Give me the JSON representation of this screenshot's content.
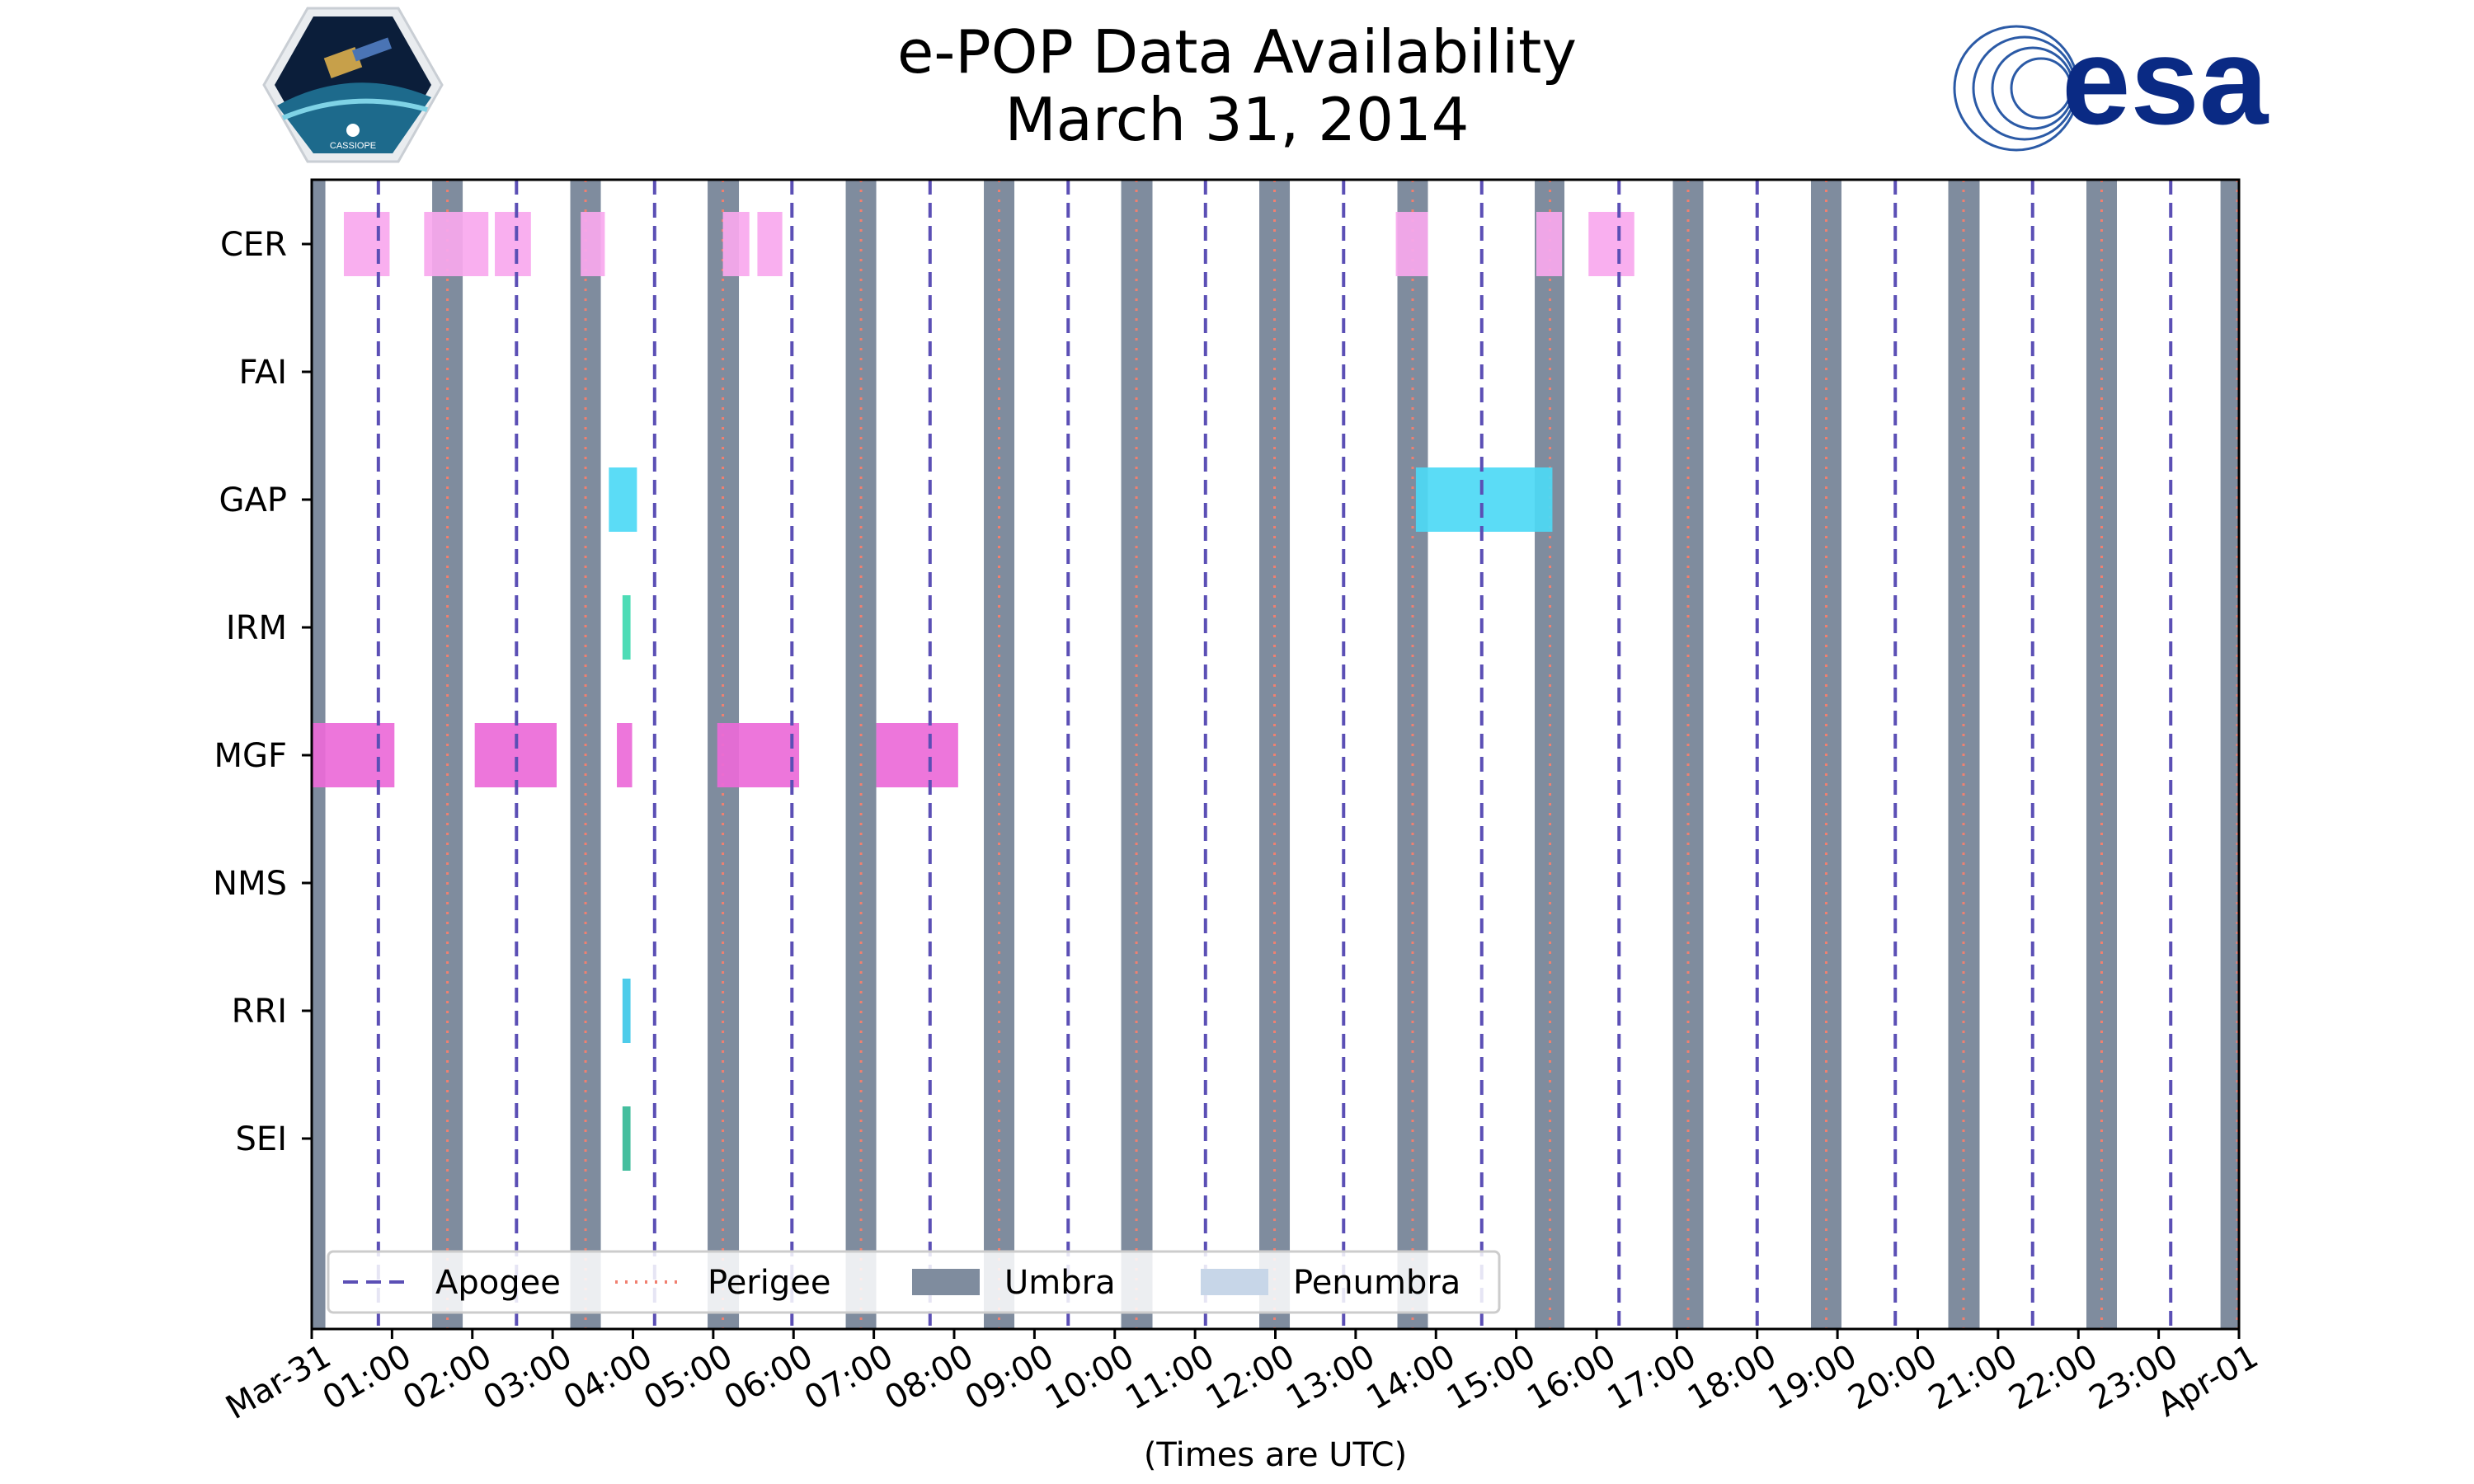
{
  "title": {
    "line1": "e-POP Data Availability",
    "line2": "March 31, 2014"
  },
  "logos": {
    "left": {
      "name": "CASSIOPE",
      "icon": "cassiope-mission-patch"
    },
    "right": {
      "name": "esa",
      "icon": "esa-logo"
    }
  },
  "chart_data": {
    "type": "timeline",
    "title": "e-POP Data Availability March 31, 2014",
    "xlabel": "(Times are UTC)",
    "xlim": [
      0,
      24
    ],
    "x_unit": "hours UTC",
    "xtick_labels": [
      "Mar-31",
      "01:00",
      "02:00",
      "03:00",
      "04:00",
      "05:00",
      "06:00",
      "07:00",
      "08:00",
      "09:00",
      "10:00",
      "11:00",
      "12:00",
      "13:00",
      "14:00",
      "15:00",
      "16:00",
      "17:00",
      "18:00",
      "19:00",
      "20:00",
      "21:00",
      "22:00",
      "23:00",
      "Apr-01"
    ],
    "instruments": [
      "CER",
      "FAI",
      "GAP",
      "IRM",
      "MGF",
      "NMS",
      "RRI",
      "SEI"
    ],
    "colors": {
      "CER": "#f9a8ee",
      "GAP": "#4dd9f5",
      "IRM": "#3ed9b0",
      "MGF": "#ec6ad8",
      "RRI": "#3ec8e8",
      "SEI": "#35b996",
      "umbra": "#7f8c9e",
      "penumbra": "#c7d6e8",
      "apogee": "#5b4fb5",
      "perigee": "#f08070"
    },
    "availability": {
      "CER": [
        [
          0.4,
          0.97
        ],
        [
          1.4,
          2.2
        ],
        [
          2.28,
          2.73
        ],
        [
          3.35,
          3.65
        ],
        [
          5.12,
          5.45
        ],
        [
          5.55,
          5.86
        ],
        [
          13.5,
          13.9
        ],
        [
          15.25,
          15.57
        ],
        [
          15.9,
          16.47
        ]
      ],
      "FAI": [],
      "GAP": [
        [
          3.7,
          4.05
        ],
        [
          13.75,
          15.45
        ]
      ],
      "IRM": [
        [
          3.87,
          3.97
        ]
      ],
      "MGF": [
        [
          0.0,
          1.03
        ],
        [
          2.03,
          3.05
        ],
        [
          3.8,
          3.99
        ],
        [
          5.05,
          6.07
        ],
        [
          7.03,
          8.05
        ]
      ],
      "NMS": [],
      "RRI": [
        [
          3.87,
          3.97
        ]
      ],
      "SEI": [
        [
          3.87,
          3.97
        ]
      ]
    },
    "umbra": [
      [
        0.0,
        0.17
      ],
      [
        1.5,
        1.88
      ],
      [
        3.22,
        3.6
      ],
      [
        4.93,
        5.32
      ],
      [
        6.65,
        7.03
      ],
      [
        8.37,
        8.75
      ],
      [
        10.08,
        10.47
      ],
      [
        11.8,
        12.18
      ],
      [
        13.52,
        13.9
      ],
      [
        15.23,
        15.6
      ],
      [
        16.95,
        17.33
      ],
      [
        18.67,
        19.05
      ],
      [
        20.38,
        20.77
      ],
      [
        22.1,
        22.48
      ],
      [
        23.77,
        24.0
      ]
    ],
    "apogee": [
      0.83,
      2.55,
      4.27,
      5.98,
      7.7,
      9.42,
      11.13,
      12.85,
      14.57,
      16.28,
      18.0,
      19.72,
      21.43,
      23.15
    ],
    "perigee": [
      1.69,
      3.41,
      5.12,
      6.84,
      8.56,
      10.27,
      11.99,
      13.71,
      15.42,
      17.14,
      18.86,
      20.57,
      22.29,
      23.98
    ],
    "legend": {
      "location": "lower-left",
      "entries": [
        "Apogee",
        "Perigee",
        "Umbra",
        "Penumbra"
      ]
    }
  }
}
